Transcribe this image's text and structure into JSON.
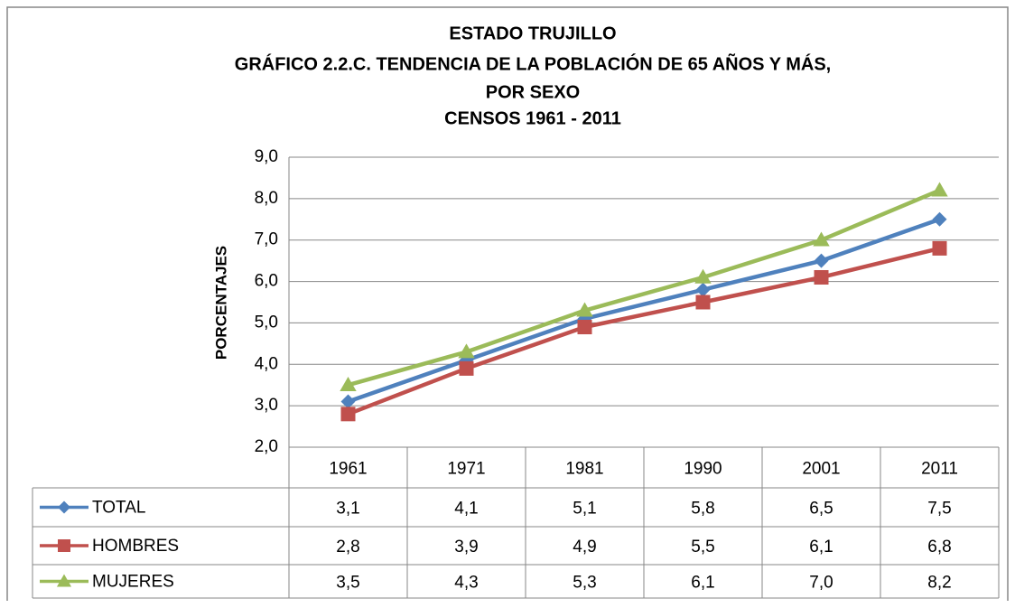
{
  "chart_data": {
    "type": "line",
    "title": [
      "ESTADO TRUJILLO",
      "GRÁFICO 2.2.C. TENDENCIA DE LA POBLACIÓN DE 65 AÑOS Y MÁS,",
      "POR SEXO",
      "CENSOS 1961 - 2011"
    ],
    "y_label": "PORCENTAJES",
    "categories": [
      "1961",
      "1971",
      "1981",
      "1990",
      "2001",
      "2011"
    ],
    "series": [
      {
        "name": "TOTAL",
        "color": "#4f81bd",
        "marker": "diamond",
        "values": [
          3.1,
          4.1,
          5.1,
          5.8,
          6.5,
          7.5
        ],
        "value_labels": [
          "3,1",
          "4,1",
          "5,1",
          "5,8",
          "6,5",
          "7,5"
        ]
      },
      {
        "name": "HOMBRES",
        "color": "#c0504d",
        "marker": "square",
        "values": [
          2.8,
          3.9,
          4.9,
          5.5,
          6.1,
          6.8
        ],
        "value_labels": [
          "2,8",
          "3,9",
          "4,9",
          "5,5",
          "6,1",
          "6,8"
        ]
      },
      {
        "name": "MUJERES",
        "color": "#9bbb59",
        "marker": "triangle",
        "values": [
          3.5,
          4.3,
          5.3,
          6.1,
          7.0,
          8.2
        ],
        "value_labels": [
          "3,5",
          "4,3",
          "5,3",
          "6,1",
          "7,0",
          "8,2"
        ]
      }
    ],
    "ylim": [
      2,
      9
    ],
    "yticks": [
      {
        "value": 2,
        "label": "2,0"
      },
      {
        "value": 3,
        "label": "3,0"
      },
      {
        "value": 4,
        "label": "4,0"
      },
      {
        "value": 5,
        "label": "5,0"
      },
      {
        "value": 6,
        "label": "6,0"
      },
      {
        "value": 7,
        "label": "7,0"
      },
      {
        "value": 8,
        "label": "8,0"
      },
      {
        "value": 9,
        "label": "9,0"
      }
    ],
    "grid": true
  }
}
